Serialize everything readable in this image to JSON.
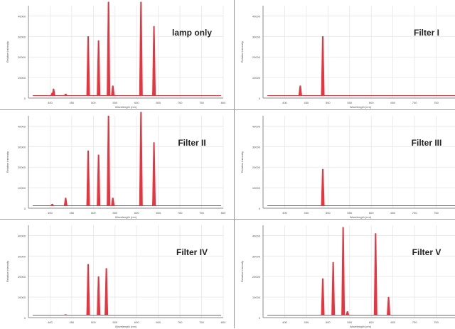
{
  "axes": {
    "ylabel": "Relative intensity",
    "xlabel": "Wavelength (nm)",
    "xlim": [
      350,
      800
    ],
    "ylim": [
      0,
      45000
    ],
    "xticks": [
      400,
      450,
      500,
      550,
      600,
      650,
      700,
      750,
      800
    ],
    "yticks": [
      0,
      10000,
      20000,
      30000,
      40000
    ],
    "xtick_labels": [
      "400",
      "450",
      "500",
      "550",
      "600",
      "650",
      "700",
      "750",
      "800"
    ],
    "ytick_labels": [
      "0",
      "10000",
      "20000",
      "30000",
      "40000"
    ],
    "grid": true
  },
  "colors": {
    "line": "#e8343f",
    "frame": "#8c8c8c",
    "grid": "#e6e6e6",
    "separator": "#9a9a9a"
  },
  "chart_data": [
    {
      "type": "line",
      "title": "lamp only",
      "peaks": [
        {
          "x": 405,
          "y": 2500
        },
        {
          "x": 408,
          "y": 4500
        },
        {
          "x": 436,
          "y": 2000
        },
        {
          "x": 488,
          "y": 30000
        },
        {
          "x": 512,
          "y": 28000
        },
        {
          "x": 535,
          "y": 48000
        },
        {
          "x": 545,
          "y": 6000
        },
        {
          "x": 610,
          "y": 48000
        },
        {
          "x": 640,
          "y": 35000
        }
      ]
    },
    {
      "type": "line",
      "title": "Filter I",
      "peaks": [
        {
          "x": 436,
          "y": 6000
        },
        {
          "x": 488,
          "y": 30000
        }
      ]
    },
    {
      "type": "line",
      "title": "Filter II",
      "peaks": [
        {
          "x": 405,
          "y": 2000
        },
        {
          "x": 436,
          "y": 5000
        },
        {
          "x": 488,
          "y": 28000
        },
        {
          "x": 512,
          "y": 26000
        },
        {
          "x": 535,
          "y": 45000
        },
        {
          "x": 545,
          "y": 5000
        },
        {
          "x": 610,
          "y": 48000
        },
        {
          "x": 640,
          "y": 32000
        }
      ]
    },
    {
      "type": "line",
      "title": "Filter III",
      "peaks": [
        {
          "x": 488,
          "y": 19000
        }
      ]
    },
    {
      "type": "line",
      "title": "Filter IV",
      "peaks": [
        {
          "x": 436,
          "y": 1500
        },
        {
          "x": 488,
          "y": 26000
        },
        {
          "x": 512,
          "y": 20000
        },
        {
          "x": 530,
          "y": 24000
        }
      ]
    },
    {
      "type": "line",
      "title": "Filter V",
      "peaks": [
        {
          "x": 488,
          "y": 19000
        },
        {
          "x": 512,
          "y": 27000
        },
        {
          "x": 535,
          "y": 44000
        },
        {
          "x": 545,
          "y": 3000
        },
        {
          "x": 610,
          "y": 41000
        },
        {
          "x": 640,
          "y": 10000
        }
      ]
    }
  ]
}
